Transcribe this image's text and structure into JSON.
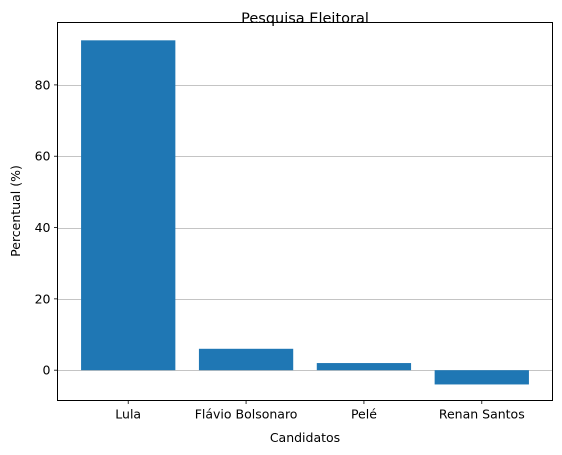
{
  "chart_data": {
    "type": "bar",
    "title": "Pesquisa Eleitoral",
    "xlabel": "Candidatos",
    "ylabel": "Percentual (%)",
    "categories": [
      "Lula",
      "Flávio Bolsonaro",
      "Pelé",
      "Renan Santos"
    ],
    "values": [
      92.5,
      6.0,
      2.0,
      -4.0
    ],
    "ylim": [
      -8.5,
      97.5
    ],
    "yticks": [
      0,
      20,
      40,
      60,
      80
    ],
    "ytick_labels": [
      "0",
      "20",
      "40",
      "60",
      "80"
    ],
    "grid": "y-major",
    "bar_color": "#1f77b4",
    "grid_color": "#b0b0b0"
  }
}
